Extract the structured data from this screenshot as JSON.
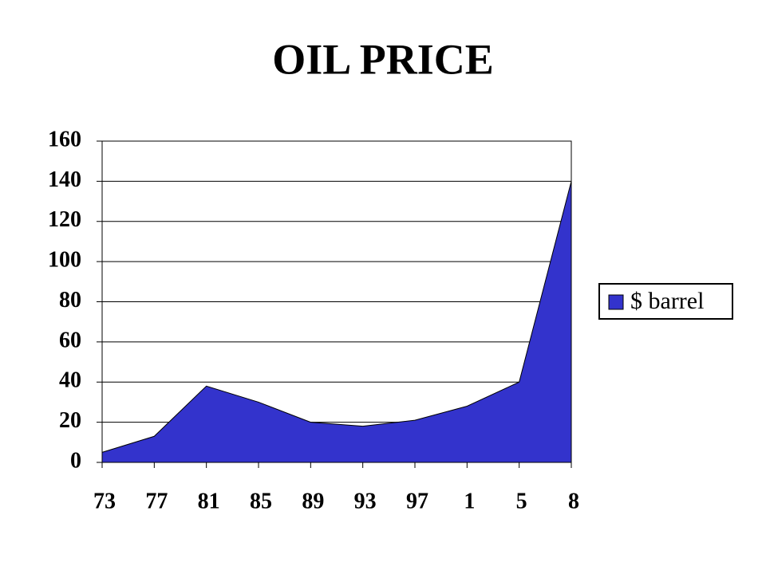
{
  "chart_data": {
    "type": "area",
    "title": "OIL PRICE",
    "categories": [
      "73",
      "77",
      "81",
      "85",
      "89",
      "93",
      "97",
      "1",
      "5",
      "8"
    ],
    "series": [
      {
        "name": "$ barrel",
        "color": "#3333cc",
        "values": [
          5,
          13,
          38,
          30,
          20,
          18,
          21,
          28,
          40,
          140
        ]
      }
    ],
    "ylim": [
      0,
      160
    ],
    "yticks": [
      0,
      20,
      40,
      60,
      80,
      100,
      120,
      140,
      160
    ],
    "grid": true,
    "legend": "right"
  }
}
